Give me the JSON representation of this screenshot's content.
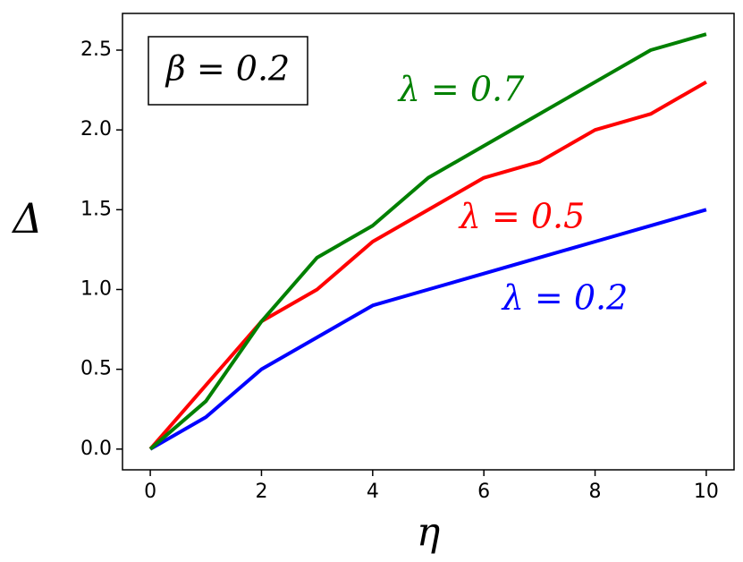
{
  "chart_data": {
    "type": "line",
    "annotation": "β = 0.2",
    "x_label": "η",
    "y_label": "Δ",
    "x": [
      0,
      1,
      2,
      3,
      4,
      5,
      6,
      7,
      8,
      9,
      10
    ],
    "series": [
      {
        "name": "λ = 0.2",
        "color": "#0000ff",
        "values": [
          0,
          0.2,
          0.5,
          0.7,
          0.9,
          1.0,
          1.1,
          1.2,
          1.3,
          1.4,
          1.5
        ]
      },
      {
        "name": "λ = 0.5",
        "color": "#ff0000",
        "values": [
          0,
          0.4,
          0.8,
          1.0,
          1.3,
          1.5,
          1.7,
          1.8,
          2.0,
          2.1,
          2.3
        ]
      },
      {
        "name": "λ = 0.7",
        "color": "#008000",
        "values": [
          0,
          0.3,
          0.8,
          1.2,
          1.4,
          1.7,
          1.9,
          2.1,
          2.3,
          2.5,
          2.6
        ]
      }
    ],
    "xlim": [
      -0.5,
      10.5
    ],
    "ylim": [
      -0.13,
      2.73
    ],
    "xticks": [
      0,
      2,
      4,
      6,
      8,
      10
    ],
    "yticks": [
      {
        "value": 0,
        "label": "0.0"
      },
      0.5,
      {
        "value": 1,
        "label": "1.0"
      },
      1.5,
      {
        "value": 2,
        "label": "2.0"
      },
      2.5
    ]
  }
}
